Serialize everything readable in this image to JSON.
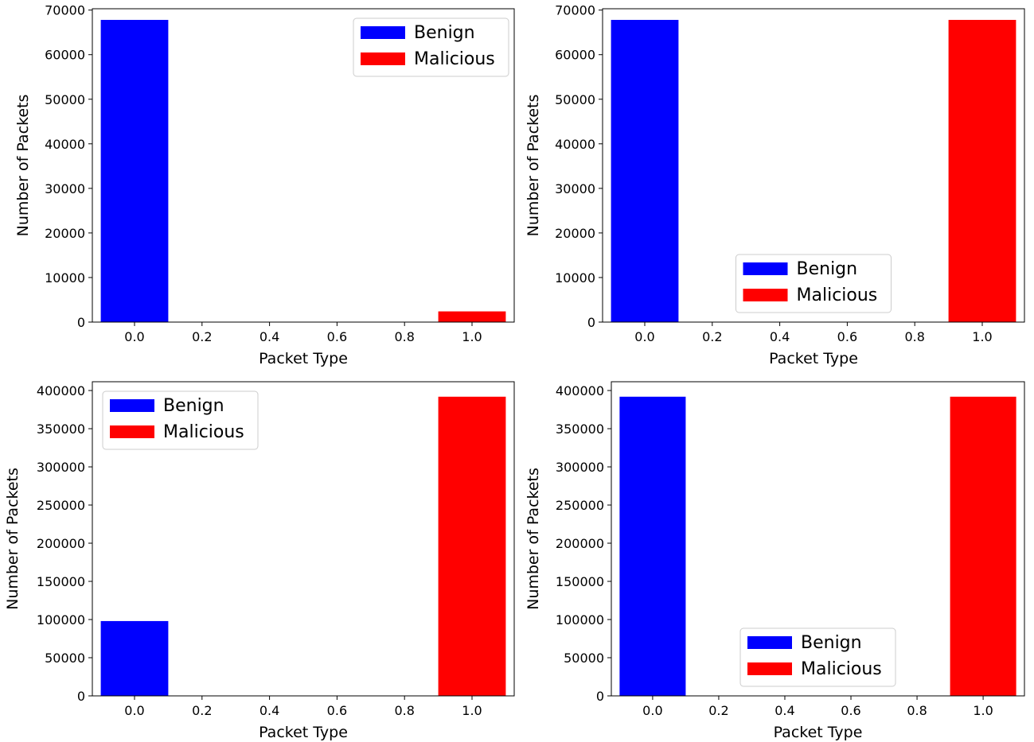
{
  "colors": {
    "benign": "#0000ff",
    "malicious": "#ff0000"
  },
  "legend": {
    "items": [
      "Benign",
      "Malicious"
    ]
  },
  "chart_data": [
    {
      "type": "bar",
      "xlabel": "Packet Type",
      "ylabel": "Number of Packets",
      "x_ticks": [
        "0.0",
        "0.2",
        "0.4",
        "0.6",
        "0.8",
        "1.0"
      ],
      "y_ticks": [
        "0",
        "10000",
        "20000",
        "30000",
        "40000",
        "50000",
        "60000",
        "70000"
      ],
      "xlim": [
        -0.125,
        1.125
      ],
      "ylim": [
        0,
        70300
      ],
      "bar_width": 0.2,
      "grid": false,
      "legend_position": "top-right",
      "series": [
        {
          "name": "Benign",
          "x": [
            0.0
          ],
          "values": [
            67800
          ]
        },
        {
          "name": "Malicious",
          "x": [
            1.0
          ],
          "values": [
            2400
          ]
        }
      ]
    },
    {
      "type": "bar",
      "xlabel": "Packet Type",
      "ylabel": "Number of Packets",
      "x_ticks": [
        "0.0",
        "0.2",
        "0.4",
        "0.6",
        "0.8",
        "1.0"
      ],
      "y_ticks": [
        "0",
        "10000",
        "20000",
        "30000",
        "40000",
        "50000",
        "60000",
        "70000"
      ],
      "xlim": [
        -0.125,
        1.125
      ],
      "ylim": [
        0,
        70300
      ],
      "bar_width": 0.2,
      "grid": false,
      "legend_position": "bottom-center",
      "series": [
        {
          "name": "Benign",
          "x": [
            0.0
          ],
          "values": [
            67800
          ]
        },
        {
          "name": "Malicious",
          "x": [
            1.0
          ],
          "values": [
            67800
          ]
        }
      ]
    },
    {
      "type": "bar",
      "xlabel": "Packet Type",
      "ylabel": "Number of Packets",
      "x_ticks": [
        "0.0",
        "0.2",
        "0.4",
        "0.6",
        "0.8",
        "1.0"
      ],
      "y_ticks": [
        "0",
        "50000",
        "100000",
        "150000",
        "200000",
        "250000",
        "300000",
        "350000",
        "400000"
      ],
      "xlim": [
        -0.125,
        1.125
      ],
      "ylim": [
        0,
        411500
      ],
      "bar_width": 0.2,
      "grid": false,
      "legend_position": "top-left",
      "series": [
        {
          "name": "Benign",
          "x": [
            0.0
          ],
          "values": [
            98000
          ]
        },
        {
          "name": "Malicious",
          "x": [
            1.0
          ],
          "values": [
            391900
          ]
        }
      ]
    },
    {
      "type": "bar",
      "xlabel": "Packet Type",
      "ylabel": "Number of Packets",
      "x_ticks": [
        "0.0",
        "0.2",
        "0.4",
        "0.6",
        "0.8",
        "1.0"
      ],
      "y_ticks": [
        "0",
        "50000",
        "100000",
        "150000",
        "200000",
        "250000",
        "300000",
        "350000",
        "400000"
      ],
      "xlim": [
        -0.125,
        1.125
      ],
      "ylim": [
        0,
        411500
      ],
      "bar_width": 0.2,
      "grid": false,
      "legend_position": "bottom-center",
      "series": [
        {
          "name": "Benign",
          "x": [
            0.0
          ],
          "values": [
            391900
          ]
        },
        {
          "name": "Malicious",
          "x": [
            1.0
          ],
          "values": [
            391900
          ]
        }
      ]
    }
  ]
}
